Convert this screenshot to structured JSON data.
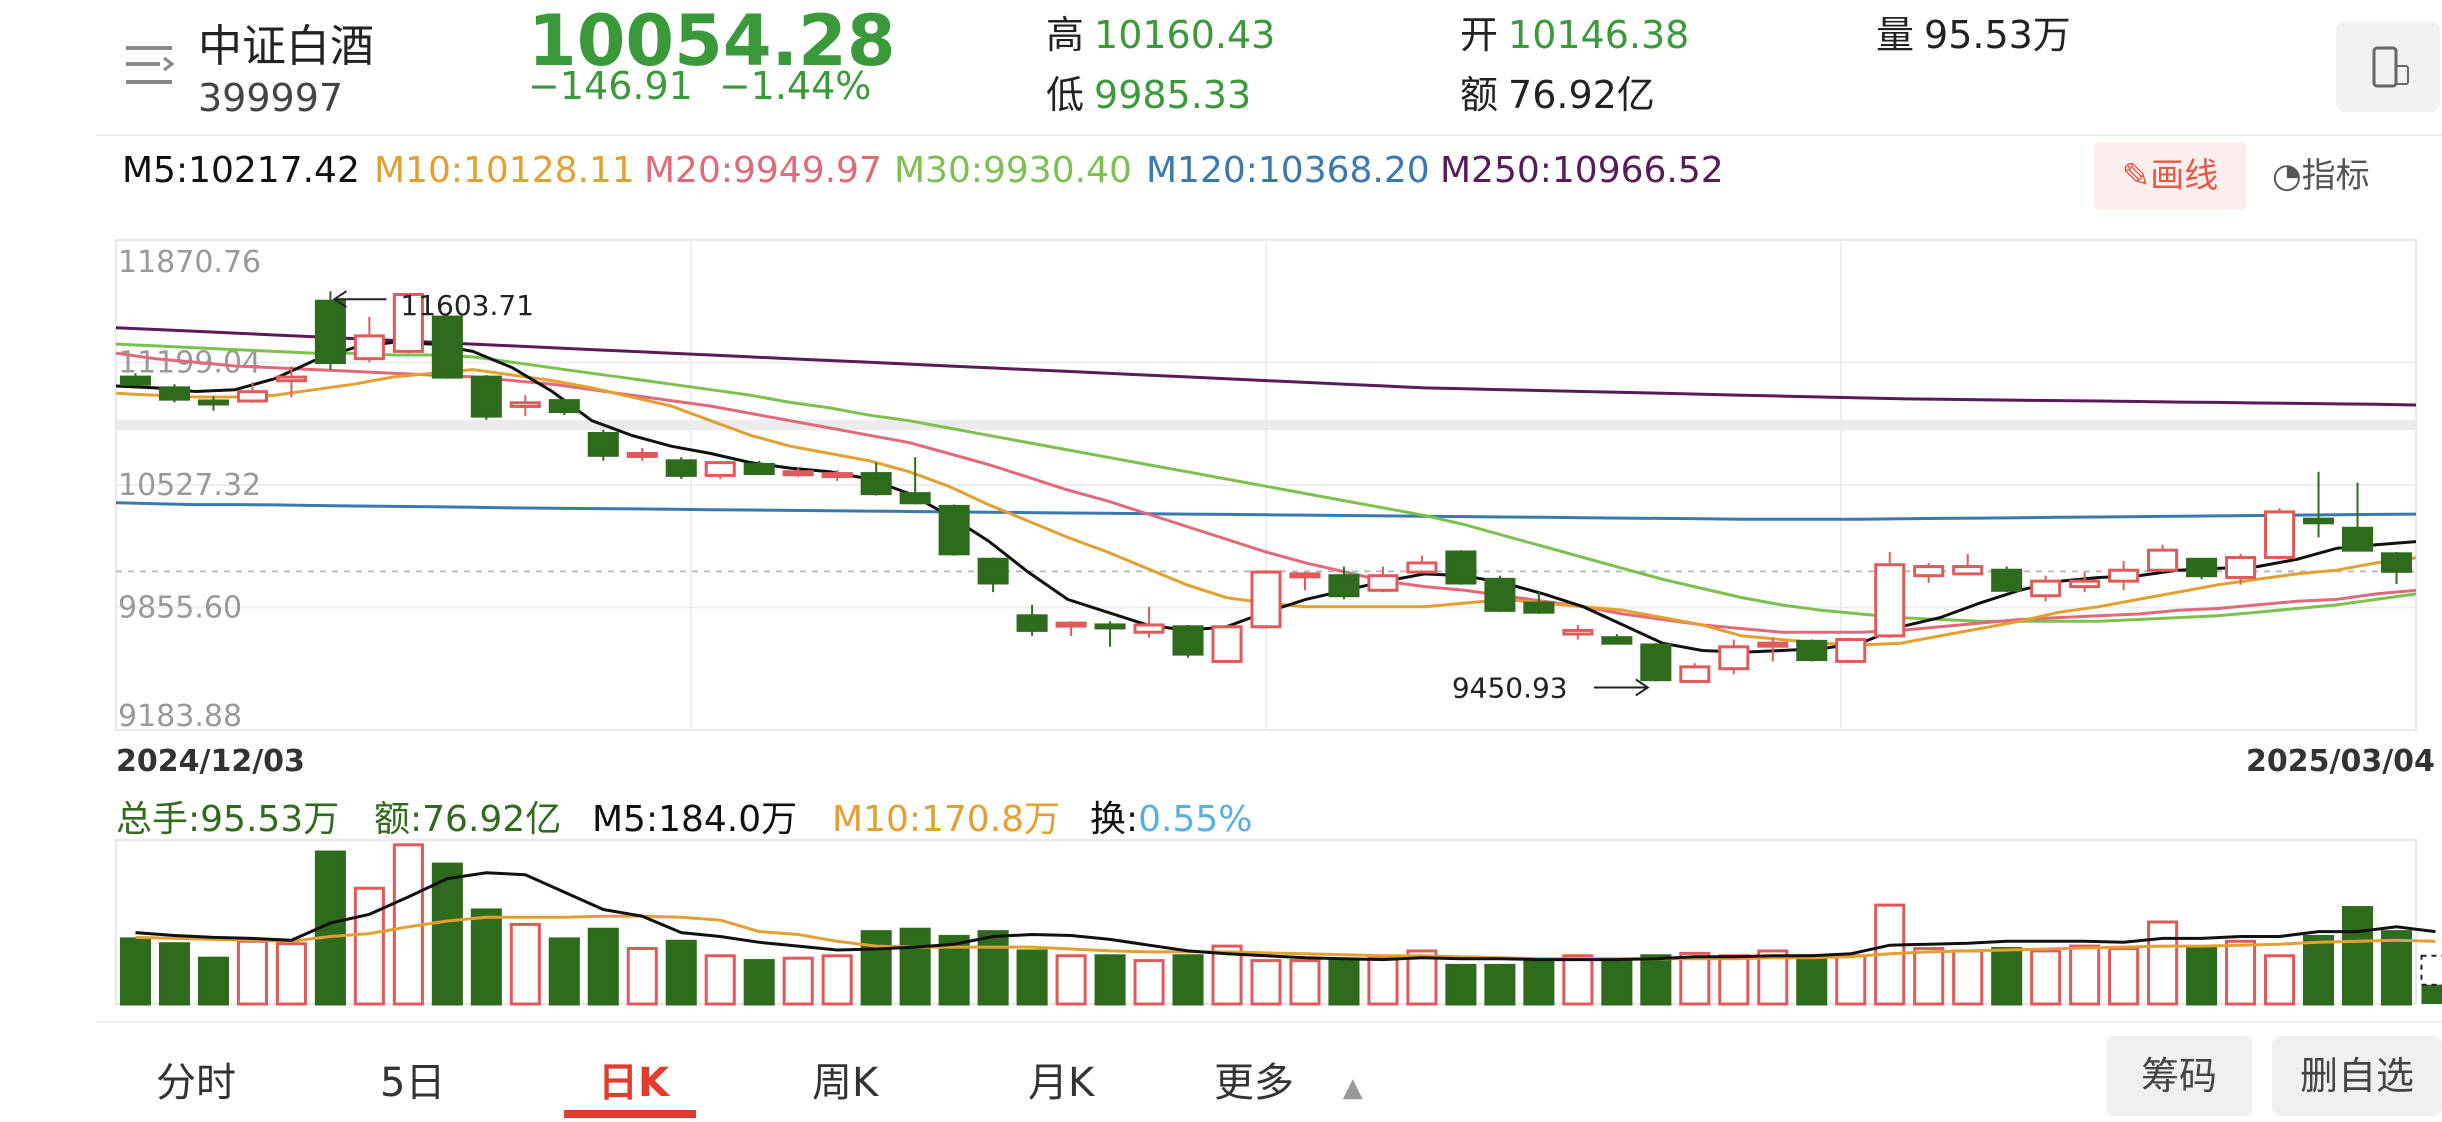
{
  "header": {
    "name": "中证白酒",
    "code": "399997",
    "price": "10054.28",
    "change": "−146.91",
    "change_pct": "−1.44%",
    "high_label": "高",
    "high_value": "10160.43",
    "low_label": "低",
    "low_value": "9985.33",
    "open_label": "开",
    "open_value": "10146.38",
    "amount_label": "额",
    "amount_value": "76.92亿",
    "volume_label": "量",
    "volume_value": "95.53万"
  },
  "ma_row": {
    "ma5": "M5:10217.42",
    "ma10": "M10:10128.11",
    "ma20": "M20:9949.97",
    "ma30": "M30:9930.40",
    "ma120": "M120:10368.20",
    "ma250": "M250:10966.52",
    "draw_button": "画线",
    "indicator_button": "指标"
  },
  "colors": {
    "up": "#e05a5a",
    "down": "#2e6b1c",
    "ma5": "#111111",
    "ma10": "#e3a030",
    "ma20": "#e06a7a",
    "ma30": "#7cc050",
    "ma120": "#3a78b0",
    "ma250": "#5a1a5a"
  },
  "chart_data": {
    "type": "candlestick",
    "y_ticks": [
      "11870.76",
      "11199.04",
      "10527.32",
      "9855.60",
      "9183.88"
    ],
    "ylim": [
      9183.88,
      11870.76
    ],
    "x_start_label": "2024/12/03",
    "x_end_label": "2025/03/04",
    "high_annotation": "11603.71",
    "low_annotation": "9450.93",
    "candles": [
      {
        "o": 11119,
        "c": 11080,
        "h": 11140,
        "l": 11070
      },
      {
        "o": 11060,
        "c": 10998,
        "h": 11080,
        "l": 10980
      },
      {
        "o": 10988,
        "c": 10978,
        "h": 11015,
        "l": 10935
      },
      {
        "o": 10988,
        "c": 11039,
        "h": 11090,
        "l": 10978
      },
      {
        "o": 11099,
        "c": 11119,
        "h": 11179,
        "l": 11009
      },
      {
        "o": 11535,
        "c": 11199,
        "h": 11590,
        "l": 11160
      },
      {
        "o": 11220,
        "c": 11345,
        "h": 11450,
        "l": 11200
      },
      {
        "o": 11260,
        "c": 11572,
        "h": 11580,
        "l": 11250
      },
      {
        "o": 11448,
        "c": 11119,
        "h": 11460,
        "l": 11110
      },
      {
        "o": 11119,
        "c": 10905,
        "h": 11130,
        "l": 10885
      },
      {
        "o": 10958,
        "c": 10978,
        "h": 11019,
        "l": 10905
      },
      {
        "o": 10990,
        "c": 10930,
        "h": 11000,
        "l": 10910
      },
      {
        "o": 10810,
        "c": 10690,
        "h": 10830,
        "l": 10660
      },
      {
        "o": 10700,
        "c": 10700,
        "h": 10730,
        "l": 10660
      },
      {
        "o": 10660,
        "c": 10580,
        "h": 10680,
        "l": 10560
      },
      {
        "o": 10580,
        "c": 10650,
        "h": 10660,
        "l": 10560
      },
      {
        "o": 10640,
        "c": 10590,
        "h": 10660,
        "l": 10590
      },
      {
        "o": 10600,
        "c": 10600,
        "h": 10620,
        "l": 10570
      },
      {
        "o": 10580,
        "c": 10590,
        "h": 10610,
        "l": 10550
      },
      {
        "o": 10590,
        "c": 10480,
        "h": 10650,
        "l": 10470
      },
      {
        "o": 10480,
        "c": 10430,
        "h": 10680,
        "l": 10420
      },
      {
        "o": 10410,
        "c": 10150,
        "h": 10420,
        "l": 10140
      },
      {
        "o": 10120,
        "c": 9990,
        "h": 10130,
        "l": 9940
      },
      {
        "o": 9810,
        "c": 9730,
        "h": 9870,
        "l": 9700
      },
      {
        "o": 9760,
        "c": 9770,
        "h": 9780,
        "l": 9700
      },
      {
        "o": 9760,
        "c": 9750,
        "h": 9780,
        "l": 9640
      },
      {
        "o": 9720,
        "c": 9760,
        "h": 9860,
        "l": 9690
      },
      {
        "o": 9750,
        "c": 9600,
        "h": 9760,
        "l": 9580
      },
      {
        "o": 9560,
        "c": 9750,
        "h": 9760,
        "l": 9560
      },
      {
        "o": 9750,
        "c": 10050,
        "h": 10060,
        "l": 9740
      },
      {
        "o": 10030,
        "c": 10040,
        "h": 10050,
        "l": 9950
      },
      {
        "o": 10030,
        "c": 9920,
        "h": 10080,
        "l": 9900
      },
      {
        "o": 9950,
        "c": 10030,
        "h": 10080,
        "l": 9940
      },
      {
        "o": 10050,
        "c": 10100,
        "h": 10140,
        "l": 10050
      },
      {
        "o": 10160,
        "c": 9990,
        "h": 10170,
        "l": 9980
      },
      {
        "o": 10010,
        "c": 9840,
        "h": 10030,
        "l": 9830
      },
      {
        "o": 9880,
        "c": 9830,
        "h": 9940,
        "l": 9820
      },
      {
        "o": 9710,
        "c": 9730,
        "h": 9760,
        "l": 9680
      },
      {
        "o": 9690,
        "c": 9660,
        "h": 9710,
        "l": 9660
      },
      {
        "o": 9650,
        "c": 9460,
        "h": 9660,
        "l": 9450
      },
      {
        "o": 9450,
        "c": 9530,
        "h": 9550,
        "l": 9450
      },
      {
        "o": 9520,
        "c": 9640,
        "h": 9680,
        "l": 9490
      },
      {
        "o": 9650,
        "c": 9660,
        "h": 9690,
        "l": 9560
      },
      {
        "o": 9670,
        "c": 9570,
        "h": 9680,
        "l": 9560
      },
      {
        "o": 9560,
        "c": 9680,
        "h": 9690,
        "l": 9560
      },
      {
        "o": 9700,
        "c": 10090,
        "h": 10160,
        "l": 9690
      },
      {
        "o": 10030,
        "c": 10080,
        "h": 10100,
        "l": 9990
      },
      {
        "o": 10040,
        "c": 10080,
        "h": 10150,
        "l": 10040
      },
      {
        "o": 10060,
        "c": 9950,
        "h": 10080,
        "l": 9940
      },
      {
        "o": 9920,
        "c": 10000,
        "h": 10030,
        "l": 9890
      },
      {
        "o": 9970,
        "c": 10000,
        "h": 10050,
        "l": 9940
      },
      {
        "o": 10000,
        "c": 10060,
        "h": 10110,
        "l": 9950
      },
      {
        "o": 10060,
        "c": 10170,
        "h": 10200,
        "l": 10050
      },
      {
        "o": 10120,
        "c": 10030,
        "h": 10120,
        "l": 10010
      },
      {
        "o": 10020,
        "c": 10130,
        "h": 10150,
        "l": 9980
      },
      {
        "o": 10130,
        "c": 10380,
        "h": 10400,
        "l": 10120
      },
      {
        "o": 10340,
        "c": 10320,
        "h": 10600,
        "l": 10240
      },
      {
        "o": 10290,
        "c": 10170,
        "h": 10540,
        "l": 10170
      },
      {
        "o": 10150,
        "c": 10054,
        "h": 10160,
        "l": 9985
      }
    ],
    "ma_series": {
      "ma5": [
        11070,
        11060,
        11040,
        11050,
        11110,
        11210,
        11280,
        11310,
        11300,
        11260,
        11170,
        11040,
        10880,
        10800,
        10740,
        10700,
        10650,
        10620,
        10600,
        10560,
        10480,
        10360,
        10220,
        10050,
        9900,
        9830,
        9760,
        9730,
        9750,
        9830,
        9900,
        9950,
        10000,
        10040,
        10030,
        9990,
        9930,
        9860,
        9760,
        9660,
        9620,
        9610,
        9620,
        9630,
        9660,
        9750,
        9800,
        9880,
        9950,
        10000,
        10020,
        10030,
        10060,
        10070,
        10080,
        10120,
        10180,
        10200,
        10217
      ],
      "ma10": [
        11030,
        11020,
        11010,
        11010,
        11020,
        11050,
        11080,
        11120,
        11140,
        11160,
        11130,
        11100,
        11060,
        11010,
        10960,
        10880,
        10800,
        10740,
        10700,
        10660,
        10600,
        10520,
        10420,
        10330,
        10240,
        10160,
        10070,
        9980,
        9910,
        9880,
        9860,
        9860,
        9860,
        9860,
        9880,
        9900,
        9880,
        9860,
        9840,
        9800,
        9760,
        9700,
        9680,
        9660,
        9650,
        9660,
        9700,
        9740,
        9780,
        9830,
        9860,
        9900,
        9940,
        9980,
        10010,
        10040,
        10060,
        10100,
        10128
      ],
      "ma20": [
        11250,
        11220,
        11200,
        11180,
        11170,
        11160,
        11150,
        11140,
        11130,
        11120,
        11100,
        11080,
        11050,
        11020,
        10990,
        10960,
        10920,
        10880,
        10840,
        10800,
        10760,
        10700,
        10640,
        10570,
        10500,
        10440,
        10370,
        10300,
        10230,
        10160,
        10100,
        10050,
        10000,
        9970,
        9950,
        9920,
        9890,
        9860,
        9820,
        9790,
        9760,
        9740,
        9720,
        9720,
        9720,
        9730,
        9750,
        9770,
        9790,
        9800,
        9810,
        9820,
        9840,
        9850,
        9870,
        9890,
        9900,
        9930,
        9950
      ],
      "ma30": [
        11300,
        11290,
        11280,
        11270,
        11260,
        11250,
        11250,
        11240,
        11240,
        11230,
        11200,
        11170,
        11140,
        11110,
        11080,
        11050,
        11020,
        10980,
        10950,
        10910,
        10880,
        10840,
        10800,
        10760,
        10720,
        10680,
        10640,
        10600,
        10560,
        10520,
        10480,
        10440,
        10400,
        10360,
        10310,
        10250,
        10190,
        10130,
        10070,
        10010,
        9960,
        9910,
        9870,
        9840,
        9820,
        9800,
        9790,
        9780,
        9780,
        9780,
        9780,
        9790,
        9800,
        9810,
        9830,
        9850,
        9870,
        9900,
        9930
      ],
      "ma120": [
        10430,
        10425,
        10420,
        10420,
        10418,
        10415,
        10412,
        10410,
        10408,
        10405,
        10402,
        10400,
        10398,
        10396,
        10394,
        10392,
        10390,
        10388,
        10386,
        10384,
        10382,
        10380,
        10378,
        10376,
        10374,
        10372,
        10370,
        10368,
        10366,
        10364,
        10362,
        10360,
        10358,
        10356,
        10354,
        10352,
        10350,
        10348,
        10346,
        10344,
        10342,
        10340,
        10340,
        10340,
        10340,
        10342,
        10344,
        10346,
        10348,
        10350,
        10352,
        10354,
        10356,
        10358,
        10360,
        10362,
        10364,
        10366,
        10368
      ],
      "ma250": [
        11390,
        11380,
        11370,
        11360,
        11350,
        11340,
        11330,
        11320,
        11310,
        11300,
        11290,
        11280,
        11270,
        11260,
        11250,
        11240,
        11230,
        11220,
        11210,
        11200,
        11190,
        11180,
        11170,
        11160,
        11150,
        11140,
        11130,
        11120,
        11110,
        11100,
        11090,
        11080,
        11070,
        11060,
        11055,
        11050,
        11045,
        11040,
        11035,
        11030,
        11025,
        11020,
        11015,
        11010,
        11005,
        11000,
        10998,
        10995,
        10992,
        10990,
        10988,
        10985,
        10982,
        10980,
        10977,
        10975,
        10972,
        10970,
        10966
      ]
    },
    "volume": {
      "total": "总手:95.53万",
      "amount": "额:76.92亿",
      "ma5": "M5:184.0万",
      "ma10": "M10:170.8万",
      "turnover_label": "换:",
      "turnover_value": "0.55%",
      "values": [
        135,
        125,
        95,
        130,
        125,
        315,
        240,
        330,
        290,
        195,
        165,
        135,
        155,
        115,
        130,
        100,
        90,
        95,
        100,
        150,
        155,
        140,
        150,
        110,
        100,
        100,
        90,
        100,
        120,
        90,
        90,
        90,
        95,
        110,
        80,
        80,
        90,
        100,
        90,
        100,
        105,
        100,
        110,
        100,
        100,
        205,
        115,
        110,
        115,
        110,
        120,
        115,
        170,
        115,
        130,
        100,
        140,
        200,
        150,
        100
      ],
      "ma5_values": [
        148,
        142,
        138,
        136,
        132,
        168,
        186,
        222,
        260,
        272,
        268,
        232,
        196,
        182,
        148,
        140,
        128,
        120,
        112,
        114,
        118,
        124,
        140,
        144,
        142,
        134,
        122,
        110,
        104,
        100,
        96,
        94,
        92,
        96,
        94,
        94,
        92,
        92,
        92,
        94,
        98,
        98,
        100,
        100,
        104,
        122,
        124,
        126,
        130,
        130,
        130,
        128,
        136,
        136,
        140,
        140,
        150,
        150,
        160,
        150
      ],
      "ma10_values": [
        138,
        136,
        134,
        132,
        130,
        140,
        146,
        160,
        172,
        180,
        180,
        180,
        182,
        182,
        180,
        174,
        150,
        144,
        130,
        120,
        118,
        118,
        118,
        118,
        114,
        110,
        108,
        108,
        108,
        106,
        104,
        102,
        100,
        100,
        98,
        96,
        94,
        94,
        94,
        94,
        94,
        94,
        96,
        96,
        98,
        104,
        108,
        110,
        112,
        114,
        116,
        118,
        120,
        120,
        122,
        124,
        128,
        130,
        132,
        130
      ]
    }
  },
  "tabs": [
    "分时",
    "5日",
    "日K",
    "周K",
    "月K",
    "更多"
  ],
  "active_tab": "日K",
  "buttons": {
    "chip": "筹码",
    "remove_watch": "删自选"
  }
}
